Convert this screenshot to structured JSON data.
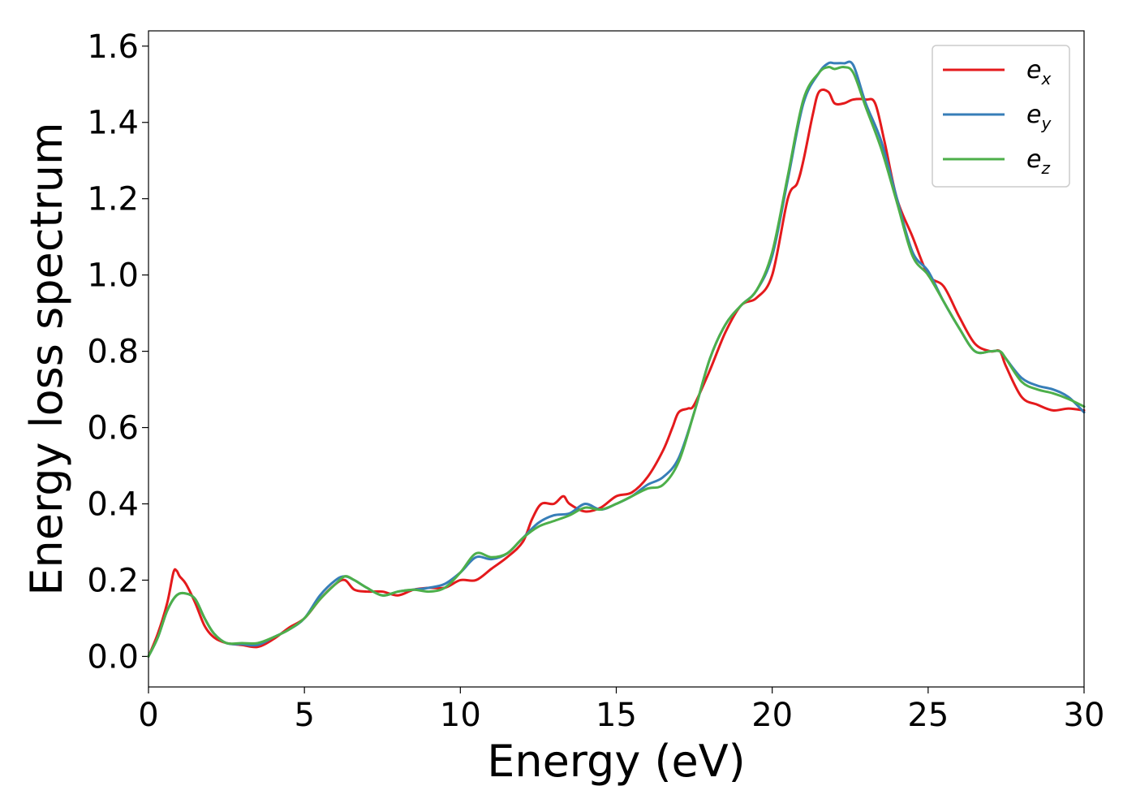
{
  "chart_data": {
    "type": "line",
    "title": "",
    "xlabel": "Energy (eV)",
    "ylabel": "Energy loss spectrum",
    "xlim": [
      0,
      30
    ],
    "ylim": [
      -0.08,
      1.64
    ],
    "xticks": [
      "0",
      "5",
      "10",
      "15",
      "20",
      "25",
      "30"
    ],
    "yticks": [
      "0.0",
      "0.2",
      "0.4",
      "0.6",
      "0.8",
      "1.0",
      "1.2",
      "1.4",
      "1.6"
    ],
    "grid": false,
    "legend_position": "top-right",
    "series": [
      {
        "name": "e",
        "subscript": "x",
        "color": "#e41a1c",
        "x": [
          0,
          0.3,
          0.6,
          0.8,
          0.9,
          1.0,
          1.2,
          1.5,
          1.8,
          2.1,
          2.5,
          3.0,
          3.5,
          4.0,
          4.5,
          5.0,
          5.5,
          6.0,
          6.3,
          6.6,
          7.0,
          7.5,
          8.0,
          8.5,
          9.0,
          9.5,
          10.0,
          10.5,
          11.0,
          11.5,
          12.0,
          12.3,
          12.6,
          13.0,
          13.3,
          13.5,
          14.0,
          14.5,
          15.0,
          15.5,
          16.0,
          16.5,
          16.8,
          17.0,
          17.3,
          17.5,
          18.0,
          18.5,
          19.0,
          19.5,
          20.0,
          20.5,
          20.8,
          21.0,
          21.3,
          21.5,
          21.8,
          22.0,
          22.3,
          22.6,
          23.0,
          23.3,
          23.6,
          24.0,
          24.5,
          25.0,
          25.5,
          26.0,
          26.5,
          27.0,
          27.3,
          27.5,
          28.0,
          28.5,
          29.0,
          29.5,
          30.0
        ],
        "values": [
          0.0,
          0.06,
          0.14,
          0.22,
          0.225,
          0.21,
          0.19,
          0.14,
          0.08,
          0.05,
          0.035,
          0.03,
          0.025,
          0.045,
          0.075,
          0.1,
          0.15,
          0.19,
          0.2,
          0.175,
          0.17,
          0.17,
          0.16,
          0.175,
          0.18,
          0.18,
          0.2,
          0.2,
          0.23,
          0.26,
          0.3,
          0.36,
          0.4,
          0.4,
          0.42,
          0.4,
          0.38,
          0.39,
          0.42,
          0.43,
          0.47,
          0.54,
          0.6,
          0.64,
          0.65,
          0.66,
          0.75,
          0.85,
          0.92,
          0.94,
          1.0,
          1.2,
          1.24,
          1.3,
          1.42,
          1.48,
          1.48,
          1.45,
          1.45,
          1.46,
          1.46,
          1.45,
          1.35,
          1.2,
          1.1,
          1.0,
          0.97,
          0.89,
          0.82,
          0.8,
          0.8,
          0.76,
          0.68,
          0.66,
          0.645,
          0.65,
          0.645
        ]
      },
      {
        "name": "e",
        "subscript": "y",
        "color": "#377eb8",
        "x": [
          0,
          0.3,
          0.6,
          0.9,
          1.2,
          1.5,
          1.8,
          2.1,
          2.5,
          3.0,
          3.5,
          4.0,
          4.5,
          5.0,
          5.5,
          6.0,
          6.3,
          6.6,
          7.0,
          7.5,
          8.0,
          8.5,
          9.0,
          9.5,
          10.0,
          10.5,
          11.0,
          11.5,
          12.0,
          12.5,
          13.0,
          13.5,
          14.0,
          14.5,
          15.0,
          15.5,
          16.0,
          16.5,
          17.0,
          17.5,
          18.0,
          18.5,
          19.0,
          19.5,
          20.0,
          20.5,
          21.0,
          21.5,
          21.8,
          22.0,
          22.3,
          22.6,
          23.0,
          23.5,
          24.0,
          24.5,
          25.0,
          25.5,
          26.0,
          26.5,
          27.0,
          27.3,
          27.5,
          28.0,
          28.5,
          29.0,
          29.5,
          30.0
        ],
        "values": [
          0.0,
          0.05,
          0.12,
          0.16,
          0.165,
          0.15,
          0.1,
          0.06,
          0.035,
          0.032,
          0.03,
          0.05,
          0.07,
          0.1,
          0.16,
          0.2,
          0.21,
          0.2,
          0.18,
          0.16,
          0.17,
          0.175,
          0.18,
          0.19,
          0.22,
          0.26,
          0.255,
          0.27,
          0.31,
          0.35,
          0.37,
          0.375,
          0.4,
          0.385,
          0.4,
          0.42,
          0.45,
          0.47,
          0.52,
          0.64,
          0.78,
          0.87,
          0.92,
          0.96,
          1.05,
          1.25,
          1.45,
          1.53,
          1.555,
          1.555,
          1.555,
          1.55,
          1.45,
          1.35,
          1.2,
          1.06,
          1.01,
          0.93,
          0.86,
          0.8,
          0.8,
          0.8,
          0.78,
          0.73,
          0.71,
          0.7,
          0.68,
          0.64
        ]
      },
      {
        "name": "e",
        "subscript": "z",
        "color": "#4daf4a",
        "x": [
          0,
          0.3,
          0.6,
          0.9,
          1.2,
          1.5,
          1.8,
          2.1,
          2.5,
          3.0,
          3.5,
          4.0,
          4.5,
          5.0,
          5.5,
          6.0,
          6.3,
          6.6,
          7.0,
          7.5,
          8.0,
          8.5,
          9.0,
          9.5,
          10.0,
          10.5,
          11.0,
          11.5,
          12.0,
          12.5,
          13.0,
          13.5,
          14.0,
          14.5,
          15.0,
          15.5,
          16.0,
          16.5,
          17.0,
          17.5,
          18.0,
          18.5,
          19.0,
          19.5,
          20.0,
          20.5,
          21.0,
          21.5,
          21.8,
          22.0,
          22.3,
          22.6,
          23.0,
          23.5,
          24.0,
          24.5,
          25.0,
          25.5,
          26.0,
          26.5,
          27.0,
          27.3,
          27.5,
          28.0,
          28.5,
          29.0,
          29.5,
          30.0
        ],
        "values": [
          0.0,
          0.05,
          0.12,
          0.16,
          0.165,
          0.15,
          0.1,
          0.06,
          0.035,
          0.035,
          0.035,
          0.05,
          0.07,
          0.1,
          0.15,
          0.19,
          0.21,
          0.2,
          0.18,
          0.16,
          0.17,
          0.175,
          0.17,
          0.18,
          0.22,
          0.27,
          0.26,
          0.27,
          0.31,
          0.34,
          0.355,
          0.37,
          0.39,
          0.385,
          0.4,
          0.42,
          0.44,
          0.45,
          0.51,
          0.64,
          0.78,
          0.87,
          0.92,
          0.96,
          1.06,
          1.26,
          1.46,
          1.53,
          1.545,
          1.54,
          1.545,
          1.53,
          1.44,
          1.33,
          1.19,
          1.05,
          1.0,
          0.93,
          0.86,
          0.8,
          0.8,
          0.8,
          0.78,
          0.72,
          0.7,
          0.69,
          0.675,
          0.655
        ]
      }
    ]
  }
}
